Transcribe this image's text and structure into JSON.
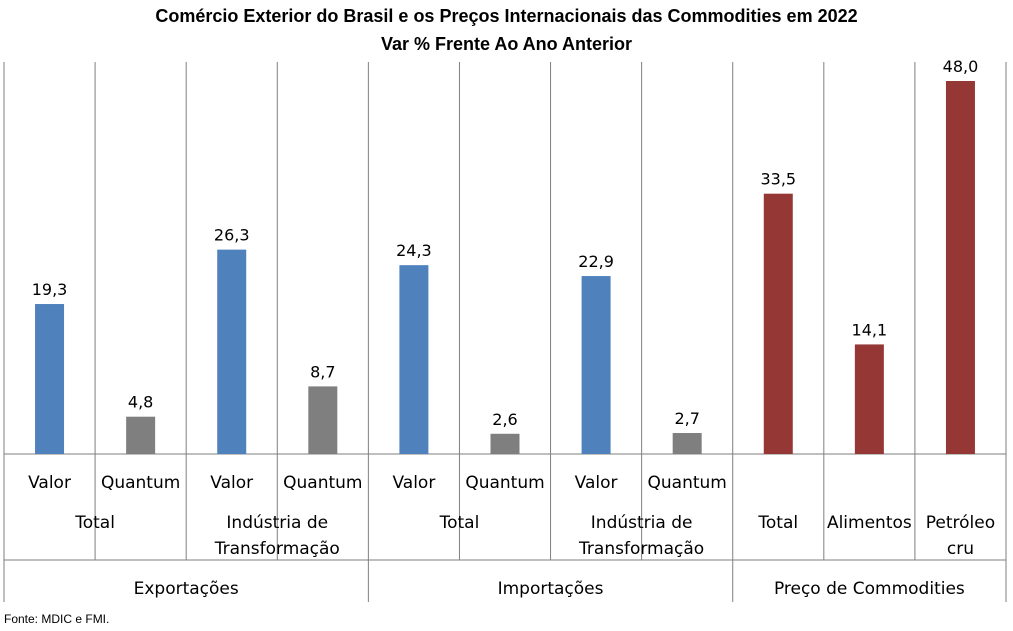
{
  "chart_data": {
    "type": "bar",
    "title": "Comércio Exterior do Brasil e os Preços Internacionais das Commodities em 2022",
    "subtitle": "Var % Frente Ao Ano Anterior",
    "ylim": [
      0,
      50
    ],
    "grid": false,
    "colors": {
      "valor": "#4f81bd",
      "quantum": "#7f7f7f",
      "commodities": "#953735"
    },
    "categories": [
      "Valor",
      "Quantum",
      "Valor",
      "Quantum",
      "Valor",
      "Quantum",
      "Valor",
      "Quantum",
      "Total",
      "Alimentos",
      "Petróleo cru"
    ],
    "values": [
      19.3,
      4.8,
      26.3,
      8.7,
      24.3,
      2.6,
      22.9,
      2.7,
      33.5,
      14.1,
      48.0
    ],
    "value_labels": [
      "19,3",
      "4,8",
      "26,3",
      "8,7",
      "24,3",
      "2,6",
      "22,9",
      "2,7",
      "33,5",
      "14,1",
      "48,0"
    ],
    "bar_color_keys": [
      "valor",
      "quantum",
      "valor",
      "quantum",
      "valor",
      "quantum",
      "valor",
      "quantum",
      "commodities",
      "commodities",
      "commodities"
    ],
    "level1_labels": [
      "Valor",
      "Quantum",
      "Valor",
      "Quantum",
      "Valor",
      "Quantum",
      "Valor",
      "Quantum",
      "",
      "",
      ""
    ],
    "level2_groups": [
      {
        "label": [
          "Total"
        ],
        "span": 2
      },
      {
        "label": [
          "Indústria de",
          "Transformação"
        ],
        "span": 2
      },
      {
        "label": [
          "Total"
        ],
        "span": 2
      },
      {
        "label": [
          "Indústria de",
          "Transformação"
        ],
        "span": 2
      },
      {
        "label": [
          "Total"
        ],
        "span": 1
      },
      {
        "label": [
          "Alimentos"
        ],
        "span": 1
      },
      {
        "label": [
          "Petróleo",
          "cru"
        ],
        "span": 1
      }
    ],
    "level3_groups": [
      {
        "label": "Exportações",
        "span": 4
      },
      {
        "label": "Importações",
        "span": 4
      },
      {
        "label": "Preço de Commodities",
        "span": 3
      }
    ]
  },
  "source_note": "Fonte: MDIC e FMI."
}
